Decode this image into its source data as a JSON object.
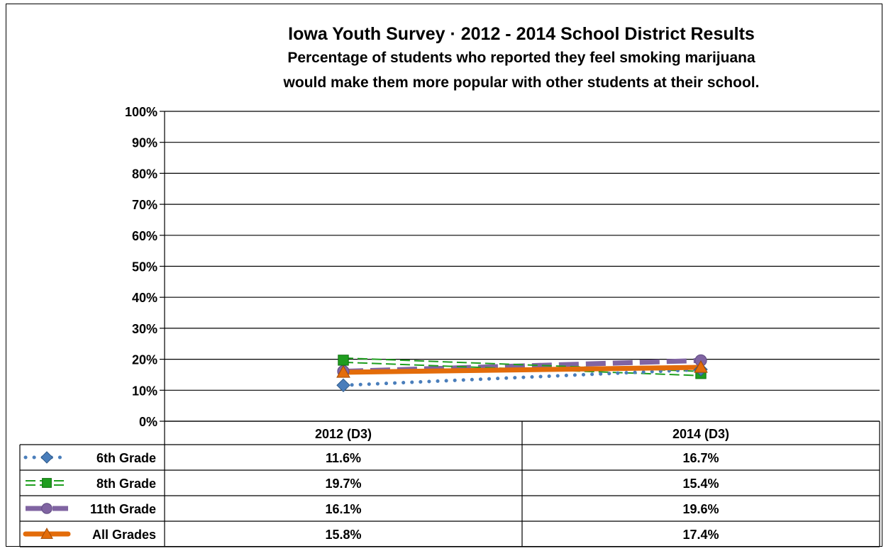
{
  "chart_data": {
    "type": "line",
    "title": "Iowa Youth Survey · 2012 - 2014 School District Results",
    "subtitle_lines": [
      "Percentage of students who reported they feel smoking marijuana",
      "would make them more popular with other students at their school."
    ],
    "categories": [
      "2012 (D3)",
      "2014 (D3)"
    ],
    "ylim": [
      0,
      100
    ],
    "yticks": [
      "0%",
      "10%",
      "20%",
      "30%",
      "40%",
      "50%",
      "60%",
      "70%",
      "80%",
      "90%",
      "100%"
    ],
    "grid": true,
    "legend": "data-table-below",
    "series": [
      {
        "name": "6th Grade",
        "values": [
          11.6,
          16.7
        ],
        "labels": [
          "11.6%",
          "16.7%"
        ],
        "color": "#4A7EBB",
        "marker": "diamond",
        "line": "dotted"
      },
      {
        "name": "8th Grade",
        "values": [
          19.7,
          15.4
        ],
        "labels": [
          "19.7%",
          "15.4%"
        ],
        "color": "#1F9E1F",
        "marker": "square",
        "line": "double-dashed"
      },
      {
        "name": "11th Grade",
        "values": [
          16.1,
          19.6
        ],
        "labels": [
          "16.1%",
          "19.6%"
        ],
        "color": "#8064A2",
        "marker": "circle",
        "line": "dashed"
      },
      {
        "name": "All Grades",
        "values": [
          15.8,
          17.4
        ],
        "labels": [
          "15.8%",
          "17.4%"
        ],
        "color": "#E36C0A",
        "marker": "triangle",
        "line": "solid"
      }
    ]
  }
}
